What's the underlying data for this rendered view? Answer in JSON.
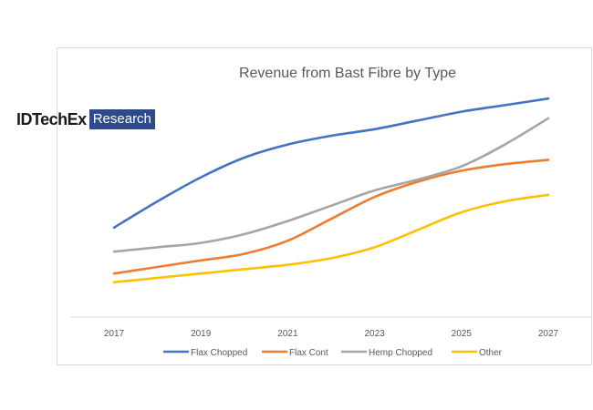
{
  "logo": {
    "brand": "IDTechEx",
    "tag": "Research"
  },
  "chart_data": {
    "type": "line",
    "title": "Revenue from Bast Fibre by Type",
    "xlabel": "",
    "ylabel": "",
    "x": [
      2017,
      2018,
      2019,
      2020,
      2021,
      2022,
      2023,
      2024,
      2025,
      2026,
      2027
    ],
    "tick_labels": [
      "2017",
      "2019",
      "2021",
      "2023",
      "2025",
      "2027"
    ],
    "ylim": [
      0,
      100
    ],
    "grid": false,
    "legend_position": "bottom",
    "series": [
      {
        "name": "Flax Chopped",
        "color": "#4472c4",
        "values": [
          38,
          50,
          61,
          70,
          76,
          80,
          83,
          87,
          91,
          94,
          97
        ]
      },
      {
        "name": "Flax Cont",
        "color": "#ed7d31",
        "values": [
          17,
          20,
          23,
          26,
          32,
          42,
          52,
          59,
          64,
          67,
          69
        ]
      },
      {
        "name": "Hemp Chopped",
        "color": "#a5a5a5",
        "values": [
          27,
          29,
          31,
          35,
          41,
          48,
          55,
          60,
          66,
          76,
          88
        ]
      },
      {
        "name": "Other",
        "color": "#ffc000",
        "values": [
          13,
          15,
          17,
          19,
          21,
          24,
          29,
          37,
          45,
          50,
          53
        ]
      }
    ]
  }
}
